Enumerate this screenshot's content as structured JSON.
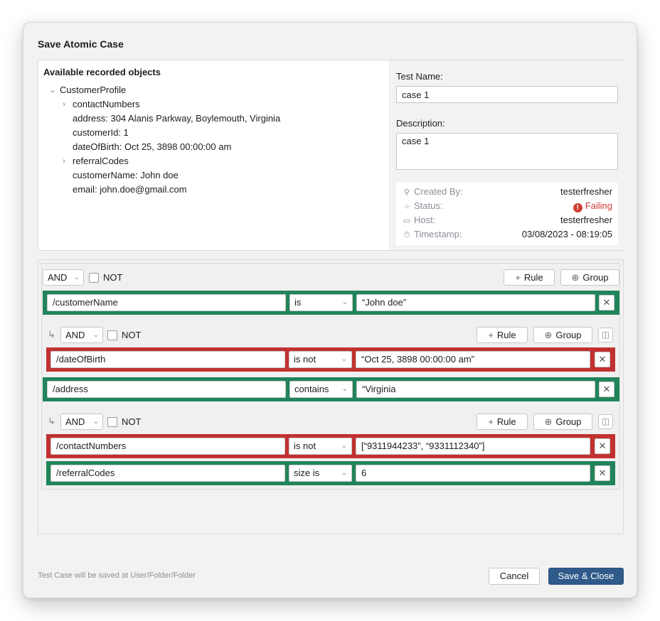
{
  "dialog": {
    "title": "Save Atomic Case"
  },
  "objects": {
    "title": "Available recorded objects",
    "tree": [
      {
        "label": "CustomerProfile",
        "level": 0,
        "chevron": "chevron-down-icon"
      },
      {
        "label": "contactNumbers",
        "level": 1,
        "chevron": "chevron-right-icon"
      },
      {
        "label": "address: 304 Alanis Parkway, Boylemouth, Virginia",
        "level": 1,
        "chevron": ""
      },
      {
        "label": "customerId: 1",
        "level": 1,
        "chevron": ""
      },
      {
        "label": "dateOfBirth: Oct 25, 3898 00:00:00 am",
        "level": 1,
        "chevron": ""
      },
      {
        "label": "referralCodes",
        "level": 1,
        "chevron": "chevron-right-icon"
      },
      {
        "label": "customerName: John doe",
        "level": 1,
        "chevron": ""
      },
      {
        "label": "email: john.doe@gmail.com",
        "level": 1,
        "chevron": ""
      }
    ]
  },
  "details": {
    "test_name_label": "Test Name:",
    "test_name_value": "case 1",
    "description_label": "Description:",
    "description_value": "case 1",
    "meta": {
      "created_by_label": "Created By:",
      "created_by_value": "testerfresher",
      "status_label": "Status:",
      "status_value": "Failing",
      "host_label": "Host:",
      "host_value": "testerfresher",
      "timestamp_label": "Timestamp:",
      "timestamp_value": "03/08/2023 - 08:19:05"
    }
  },
  "rules": {
    "root": {
      "combinator": "AND",
      "not_label": "NOT",
      "rule_button": "Rule",
      "group_button": "Group"
    },
    "rows": [
      {
        "field": "/customerName",
        "operator": "is",
        "value": "“John doe”",
        "status": "pass"
      },
      {
        "field": "/dateOfBirth",
        "operator": "is not",
        "value": "“Oct 25, 3898 00:00:00 am”",
        "status": "fail"
      },
      {
        "field": "/address",
        "operator": "contains",
        "value": "“Virginia",
        "status": "pass"
      },
      {
        "field": "/contactNumbers",
        "operator": "is not",
        "value": "[“9311944233”, “9331112340”]",
        "status": "fail"
      },
      {
        "field": "/referralCodes",
        "operator": "size is",
        "value": "6",
        "status": "pass"
      }
    ],
    "subgroups": [
      {
        "combinator": "AND",
        "not_label": "NOT",
        "rule_button": "Rule",
        "group_button": "Group"
      },
      {
        "combinator": "AND",
        "not_label": "NOT",
        "rule_button": "Rule",
        "group_button": "Group"
      }
    ]
  },
  "footer": {
    "note": "Test Case will be saved at User/Folder/Folder",
    "cancel_label": "Cancel",
    "save_label": "Save & Close"
  },
  "colors": {
    "pass": "#21845a",
    "fail": "#c23131",
    "primary": "#2f5a8a",
    "failing_text": "#d23b35"
  }
}
